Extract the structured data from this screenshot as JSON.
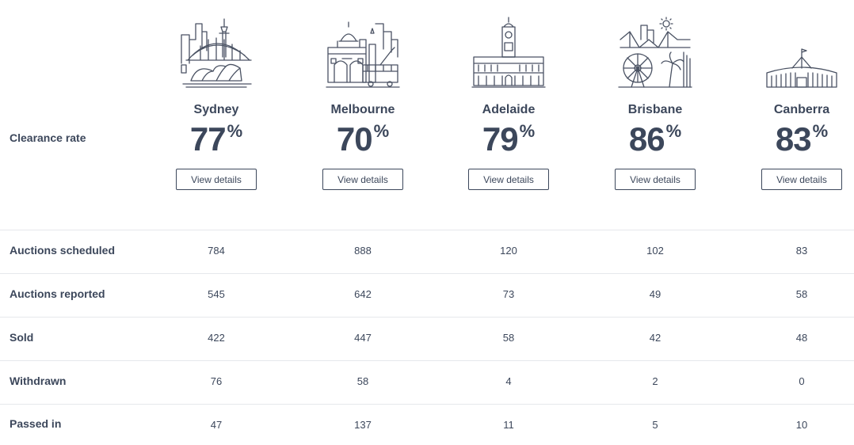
{
  "row_labels": {
    "clearance_rate": "Clearance rate",
    "auctions_scheduled": "Auctions scheduled",
    "auctions_reported": "Auctions reported",
    "sold": "Sold",
    "withdrawn": "Withdrawn",
    "passed_in": "Passed in"
  },
  "percent_symbol": "%",
  "cities": [
    {
      "name": "Sydney",
      "icon": "sydney-harbour-bridge-opera-house-icon",
      "clearance_rate": "77",
      "button_label": "View details",
      "auctions_scheduled": "784",
      "auctions_reported": "545",
      "sold": "422",
      "withdrawn": "76",
      "passed_in": "47"
    },
    {
      "name": "Melbourne",
      "icon": "flinders-street-station-tram-icon",
      "clearance_rate": "70",
      "button_label": "View details",
      "auctions_scheduled": "888",
      "auctions_reported": "642",
      "sold": "447",
      "withdrawn": "58",
      "passed_in": "137"
    },
    {
      "name": "Adelaide",
      "icon": "adelaide-town-hall-icon",
      "clearance_rate": "79",
      "button_label": "View details",
      "auctions_scheduled": "120",
      "auctions_reported": "73",
      "sold": "58",
      "withdrawn": "4",
      "passed_in": "11"
    },
    {
      "name": "Brisbane",
      "icon": "story-bridge-ferris-wheel-icon",
      "clearance_rate": "86",
      "button_label": "View details",
      "auctions_scheduled": "102",
      "auctions_reported": "49",
      "sold": "42",
      "withdrawn": "2",
      "passed_in": "5"
    },
    {
      "name": "Canberra",
      "icon": "parliament-house-icon",
      "clearance_rate": "83",
      "button_label": "View details",
      "auctions_scheduled": "83",
      "auctions_reported": "58",
      "sold": "48",
      "withdrawn": "0",
      "passed_in": "10"
    }
  ]
}
